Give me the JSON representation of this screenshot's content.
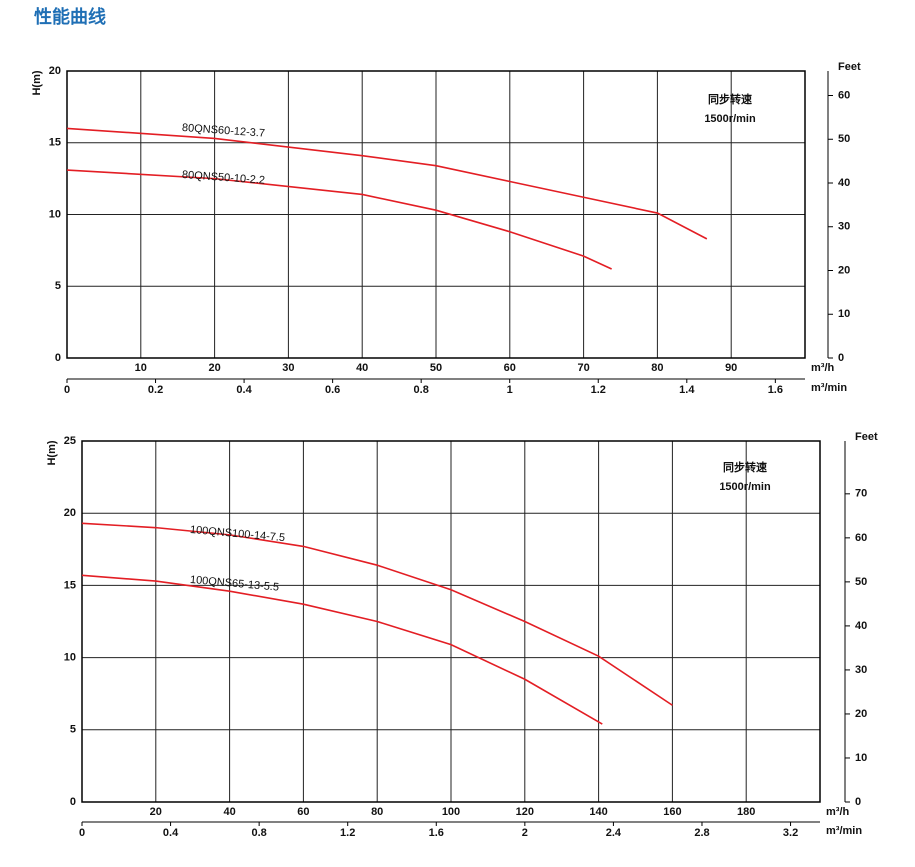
{
  "page_title": "性能曲线",
  "chart_data": [
    {
      "type": "line",
      "y_label": "H(m)",
      "y2_label": "Feet",
      "x_label": "m³/h",
      "x2_label": "m³/min",
      "note": [
        "同步转速",
        "1500r/min"
      ],
      "xlim": [
        0,
        100
      ],
      "xticks": [
        10,
        20,
        30,
        40,
        50,
        60,
        70,
        80,
        90
      ],
      "x2lim": [
        0,
        1.667
      ],
      "x2ticks": [
        0,
        0.2,
        0.4,
        0.6,
        0.8,
        1.0,
        1.2,
        1.4,
        1.6
      ],
      "ylim": [
        0,
        20
      ],
      "yticks": [
        0,
        5,
        10,
        15,
        20
      ],
      "y2lim": [
        0,
        65.6
      ],
      "y2ticks": [
        0,
        10,
        20,
        30,
        40,
        50,
        60
      ],
      "grid": true,
      "series": [
        {
          "name": "80QNS60-12-3.7",
          "color": "#e31e24",
          "x": [
            0,
            20,
            40,
            50,
            60,
            70,
            80,
            86.7
          ],
          "values": [
            16,
            15.3,
            14.1,
            13.4,
            12.3,
            11.2,
            10.1,
            8.3
          ]
        },
        {
          "name": "80QNS50-10-2.2",
          "color": "#e31e24",
          "x": [
            0,
            20,
            40,
            50,
            60,
            70,
            73.8
          ],
          "values": [
            13.1,
            12.5,
            11.4,
            10.3,
            8.8,
            7.1,
            6.2
          ]
        }
      ]
    },
    {
      "type": "line",
      "y_label": "H(m)",
      "y2_label": "Feet",
      "x_label": "m³/h",
      "x2_label": "m³/min",
      "note": [
        "同步转速",
        "1500r/min"
      ],
      "xlim": [
        0,
        200
      ],
      "xticks": [
        20,
        40,
        60,
        80,
        100,
        120,
        140,
        160,
        180
      ],
      "x2lim": [
        0,
        3.333
      ],
      "x2ticks": [
        0,
        0.4,
        0.8,
        1.2,
        1.6,
        2.0,
        2.4,
        2.8,
        3.2
      ],
      "ylim": [
        0,
        25
      ],
      "yticks": [
        0,
        5,
        10,
        15,
        20,
        25
      ],
      "y2lim": [
        0,
        82
      ],
      "y2ticks": [
        0,
        10,
        20,
        30,
        40,
        50,
        60,
        70
      ],
      "grid": true,
      "series": [
        {
          "name": "100QNS100-14-7.5",
          "color": "#e31e24",
          "x": [
            0,
            20,
            40,
            60,
            80,
            100,
            120,
            140,
            160
          ],
          "values": [
            19.3,
            19,
            18.5,
            17.7,
            16.4,
            14.7,
            12.5,
            10.1,
            6.7
          ]
        },
        {
          "name": "100QNS65-13-5.5",
          "color": "#e31e24",
          "x": [
            0,
            20,
            40,
            60,
            80,
            100,
            120,
            141
          ],
          "values": [
            15.7,
            15.3,
            14.6,
            13.7,
            12.5,
            10.9,
            8.5,
            5.4
          ]
        }
      ]
    }
  ]
}
